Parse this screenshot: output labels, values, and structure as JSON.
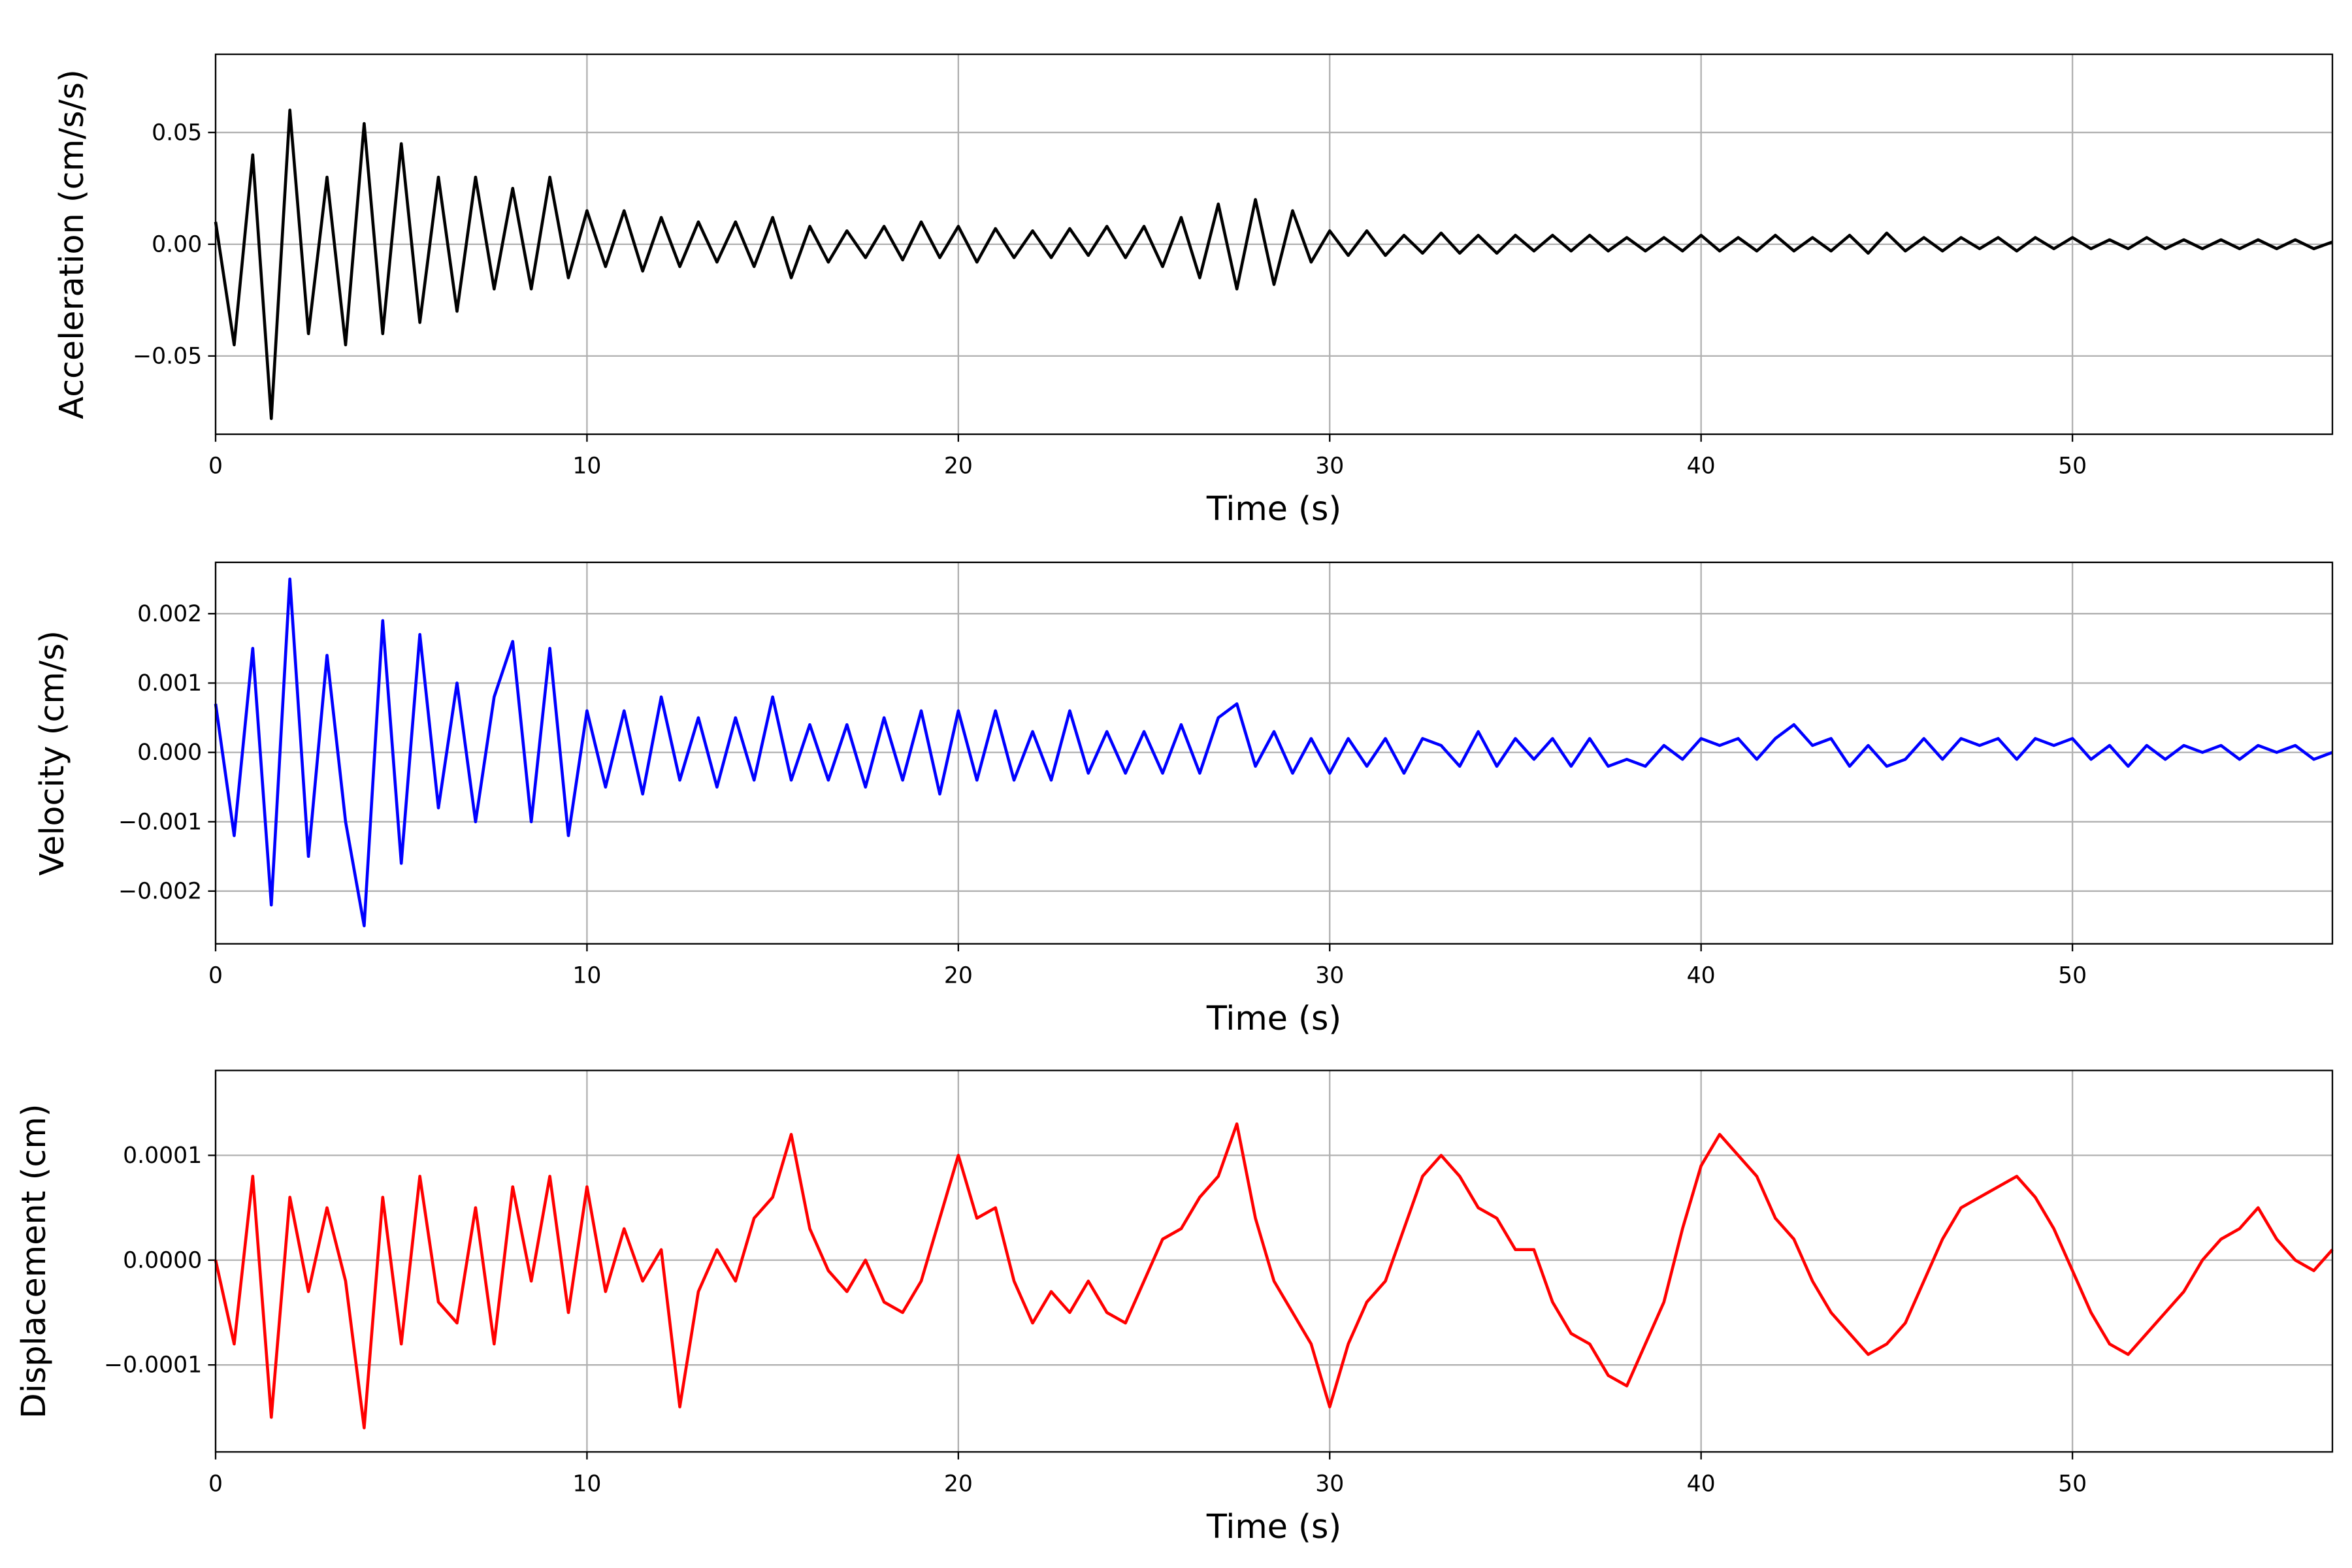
{
  "chart_data": [
    {
      "type": "line",
      "xlabel": "Time (s)",
      "ylabel": "Acceleration (cm/s/s)",
      "grid": true,
      "xlim": [
        0,
        57
      ],
      "xticks": [
        0,
        10,
        20,
        30,
        40,
        50
      ],
      "ylim": [
        -0.085,
        0.085
      ],
      "yticks": [
        {
          "value": -0.05,
          "label": "−0.05"
        },
        {
          "value": 0,
          "label": "0.00"
        },
        {
          "value": 0.05,
          "label": "0.05"
        }
      ],
      "x": [
        0,
        0.5,
        1,
        1.5,
        2,
        2.5,
        3,
        3.5,
        4,
        4.5,
        5,
        5.5,
        6,
        6.5,
        7,
        7.5,
        8,
        8.5,
        9,
        9.5,
        10,
        10.5,
        11,
        11.5,
        12,
        12.5,
        13,
        13.5,
        14,
        14.5,
        15,
        15.5,
        16,
        16.5,
        17,
        17.5,
        18,
        18.5,
        19,
        19.5,
        20,
        20.5,
        21,
        21.5,
        22,
        22.5,
        23,
        23.5,
        24,
        24.5,
        25,
        25.5,
        26,
        26.5,
        27,
        27.5,
        28,
        28.5,
        29,
        29.5,
        30,
        30.5,
        31,
        31.5,
        32,
        32.5,
        33,
        33.5,
        34,
        34.5,
        35,
        35.5,
        36,
        36.5,
        37,
        37.5,
        38,
        38.5,
        39,
        39.5,
        40,
        40.5,
        41,
        41.5,
        42,
        42.5,
        43,
        43.5,
        44,
        44.5,
        45,
        45.5,
        46,
        46.5,
        47,
        47.5,
        48,
        48.5,
        49,
        49.5,
        50,
        50.5,
        51,
        51.5,
        52,
        52.5,
        53,
        53.5,
        54,
        54.5,
        55,
        55.5,
        56,
        56.5,
        57
      ],
      "series": [
        {
          "name": "Acceleration",
          "color": "#000000",
          "values": [
            0.01,
            -0.045,
            0.04,
            -0.078,
            0.06,
            -0.04,
            0.03,
            -0.045,
            0.054,
            -0.04,
            0.045,
            -0.035,
            0.03,
            -0.03,
            0.03,
            -0.02,
            0.025,
            -0.02,
            0.03,
            -0.015,
            0.015,
            -0.01,
            0.015,
            -0.012,
            0.012,
            -0.01,
            0.01,
            -0.008,
            0.01,
            -0.01,
            0.012,
            -0.015,
            0.008,
            -0.008,
            0.006,
            -0.006,
            0.008,
            -0.007,
            0.01,
            -0.006,
            0.008,
            -0.008,
            0.007,
            -0.006,
            0.006,
            -0.006,
            0.007,
            -0.005,
            0.008,
            -0.006,
            0.008,
            -0.01,
            0.012,
            -0.015,
            0.018,
            -0.02,
            0.02,
            -0.018,
            0.015,
            -0.008,
            0.006,
            -0.005,
            0.006,
            -0.005,
            0.004,
            -0.004,
            0.005,
            -0.004,
            0.004,
            -0.004,
            0.004,
            -0.003,
            0.004,
            -0.003,
            0.004,
            -0.003,
            0.003,
            -0.003,
            0.003,
            -0.003,
            0.004,
            -0.003,
            0.003,
            -0.003,
            0.004,
            -0.003,
            0.003,
            -0.003,
            0.004,
            -0.004,
            0.005,
            -0.003,
            0.003,
            -0.003,
            0.003,
            -0.002,
            0.003,
            -0.003,
            0.003,
            -0.002,
            0.003,
            -0.002,
            0.002,
            -0.002,
            0.003,
            -0.002,
            0.002,
            -0.002,
            0.002,
            -0.002,
            0.002,
            -0.002,
            0.002,
            -0.002,
            0.001
          ]
        }
      ]
    },
    {
      "type": "line",
      "xlabel": "Time (s)",
      "ylabel": "Velocity (cm/s)",
      "grid": true,
      "xlim": [
        0,
        57
      ],
      "xticks": [
        0,
        10,
        20,
        30,
        40,
        50
      ],
      "ylim": [
        -0.00276,
        0.00274
      ],
      "yticks": [
        {
          "value": -0.002,
          "label": "−0.002"
        },
        {
          "value": -0.001,
          "label": "−0.001"
        },
        {
          "value": 0,
          "label": "0.000"
        },
        {
          "value": 0.001,
          "label": "0.001"
        },
        {
          "value": 0.002,
          "label": "0.002"
        }
      ],
      "x": [
        0,
        0.5,
        1,
        1.5,
        2,
        2.5,
        3,
        3.5,
        4,
        4.5,
        5,
        5.5,
        6,
        6.5,
        7,
        7.5,
        8,
        8.5,
        9,
        9.5,
        10,
        10.5,
        11,
        11.5,
        12,
        12.5,
        13,
        13.5,
        14,
        14.5,
        15,
        15.5,
        16,
        16.5,
        17,
        17.5,
        18,
        18.5,
        19,
        19.5,
        20,
        20.5,
        21,
        21.5,
        22,
        22.5,
        23,
        23.5,
        24,
        24.5,
        25,
        25.5,
        26,
        26.5,
        27,
        27.5,
        28,
        28.5,
        29,
        29.5,
        30,
        30.5,
        31,
        31.5,
        32,
        32.5,
        33,
        33.5,
        34,
        34.5,
        35,
        35.5,
        36,
        36.5,
        37,
        37.5,
        38,
        38.5,
        39,
        39.5,
        40,
        40.5,
        41,
        41.5,
        42,
        42.5,
        43,
        43.5,
        44,
        44.5,
        45,
        45.5,
        46,
        46.5,
        47,
        47.5,
        48,
        48.5,
        49,
        49.5,
        50,
        50.5,
        51,
        51.5,
        52,
        52.5,
        53,
        53.5,
        54,
        54.5,
        55,
        55.5,
        56,
        56.5,
        57
      ],
      "series": [
        {
          "name": "Velocity",
          "color": "#0000ff",
          "values": [
            0.0007,
            -0.0012,
            0.0015,
            -0.0022,
            0.0025,
            -0.0015,
            0.0014,
            -0.001,
            -0.0025,
            0.0019,
            -0.0016,
            0.0017,
            -0.0008,
            0.001,
            -0.001,
            0.0008,
            0.0016,
            -0.001,
            0.0015,
            -0.0012,
            0.0006,
            -0.0005,
            0.0006,
            -0.0006,
            0.0008,
            -0.0004,
            0.0005,
            -0.0005,
            0.0005,
            -0.0004,
            0.0008,
            -0.0004,
            0.0004,
            -0.0004,
            0.0004,
            -0.0005,
            0.0005,
            -0.0004,
            0.0006,
            -0.0006,
            0.0006,
            -0.0004,
            0.0006,
            -0.0004,
            0.0003,
            -0.0004,
            0.0006,
            -0.0003,
            0.0003,
            -0.0003,
            0.0003,
            -0.0003,
            0.0004,
            -0.0003,
            0.0005,
            0.0007,
            -0.0002,
            0.0003,
            -0.0003,
            0.0002,
            -0.0003,
            0.0002,
            -0.0002,
            0.0002,
            -0.0003,
            0.0002,
            0.0001,
            -0.0002,
            0.0003,
            -0.0002,
            0.0002,
            -0.0001,
            0.0002,
            -0.0002,
            0.0002,
            -0.0002,
            -0.0001,
            -0.0002,
            0.0001,
            -0.0001,
            0.0002,
            0.0001,
            0.0002,
            -0.0001,
            0.0002,
            0.0004,
            0.0001,
            0.0002,
            -0.0002,
            0.0001,
            -0.0002,
            -0.0001,
            0.0002,
            -0.0001,
            0.0002,
            0.0001,
            0.0002,
            -0.0001,
            0.0002,
            0.0001,
            0.0002,
            -0.0001,
            0.0001,
            -0.0002,
            0.0001,
            -0.0001,
            0.0001,
            0,
            0.0001,
            -0.0001,
            0.0001,
            0,
            0.0001,
            -0.0001,
            0
          ]
        }
      ]
    },
    {
      "type": "line",
      "xlabel": "Time (s)",
      "ylabel": "Displacement (cm)",
      "grid": true,
      "xlim": [
        0,
        57
      ],
      "xticks": [
        0,
        10,
        20,
        30,
        40,
        50
      ],
      "ylim": [
        -0.000183,
        0.000181
      ],
      "yticks": [
        {
          "value": -0.0001,
          "label": "−0.0001"
        },
        {
          "value": 0,
          "label": "0.0000"
        },
        {
          "value": 0.0001,
          "label": "0.0001"
        }
      ],
      "x": [
        0,
        0.5,
        1,
        1.5,
        2,
        2.5,
        3,
        3.5,
        4,
        4.5,
        5,
        5.5,
        6,
        6.5,
        7,
        7.5,
        8,
        8.5,
        9,
        9.5,
        10,
        10.5,
        11,
        11.5,
        12,
        12.5,
        13,
        13.5,
        14,
        14.5,
        15,
        15.5,
        16,
        16.5,
        17,
        17.5,
        18,
        18.5,
        19,
        19.5,
        20,
        20.5,
        21,
        21.5,
        22,
        22.5,
        23,
        23.5,
        24,
        24.5,
        25,
        25.5,
        26,
        26.5,
        27,
        27.5,
        28,
        28.5,
        29,
        29.5,
        30,
        30.5,
        31,
        31.5,
        32,
        32.5,
        33,
        33.5,
        34,
        34.5,
        35,
        35.5,
        36,
        36.5,
        37,
        37.5,
        38,
        38.5,
        39,
        39.5,
        40,
        40.5,
        41,
        41.5,
        42,
        42.5,
        43,
        43.5,
        44,
        44.5,
        45,
        45.5,
        46,
        46.5,
        47,
        47.5,
        48,
        48.5,
        49,
        49.5,
        50,
        50.5,
        51,
        51.5,
        52,
        52.5,
        53,
        53.5,
        54,
        54.5,
        55,
        55.5,
        56,
        56.5,
        57
      ],
      "series": [
        {
          "name": "Displacement",
          "color": "#ff0000",
          "values": [
            0,
            -8e-05,
            8e-05,
            -0.00015,
            6e-05,
            -3e-05,
            5e-05,
            -2e-05,
            -0.00016,
            6e-05,
            -8e-05,
            8e-05,
            -4e-05,
            -6e-05,
            5e-05,
            -8e-05,
            7e-05,
            -2e-05,
            8e-05,
            -5e-05,
            7e-05,
            -3e-05,
            3e-05,
            -2e-05,
            1e-05,
            -0.00014,
            -3e-05,
            1e-05,
            -2e-05,
            4e-05,
            6e-05,
            0.00012,
            3e-05,
            -1e-05,
            -3e-05,
            0,
            -4e-05,
            -5e-05,
            -2e-05,
            4e-05,
            0.0001,
            4e-05,
            5e-05,
            -2e-05,
            -6e-05,
            -3e-05,
            -5e-05,
            -2e-05,
            -5e-05,
            -6e-05,
            -2e-05,
            2e-05,
            3e-05,
            6e-05,
            8e-05,
            0.00013,
            4e-05,
            -2e-05,
            -5e-05,
            -8e-05,
            -0.00014,
            -8e-05,
            -4e-05,
            -2e-05,
            3e-05,
            8e-05,
            0.0001,
            8e-05,
            5e-05,
            4e-05,
            1e-05,
            1e-05,
            -4e-05,
            -7e-05,
            -8e-05,
            -0.00011,
            -0.00012,
            -8e-05,
            -4e-05,
            3e-05,
            9e-05,
            0.00012,
            0.0001,
            8e-05,
            4e-05,
            2e-05,
            -2e-05,
            -5e-05,
            -7e-05,
            -9e-05,
            -8e-05,
            -6e-05,
            -2e-05,
            2e-05,
            5e-05,
            6e-05,
            7e-05,
            8e-05,
            6e-05,
            3e-05,
            -1e-05,
            -5e-05,
            -8e-05,
            -9e-05,
            -7e-05,
            -5e-05,
            -3e-05,
            0,
            2e-05,
            3e-05,
            5e-05,
            2e-05,
            0,
            -1e-05,
            1e-05
          ]
        }
      ]
    }
  ]
}
